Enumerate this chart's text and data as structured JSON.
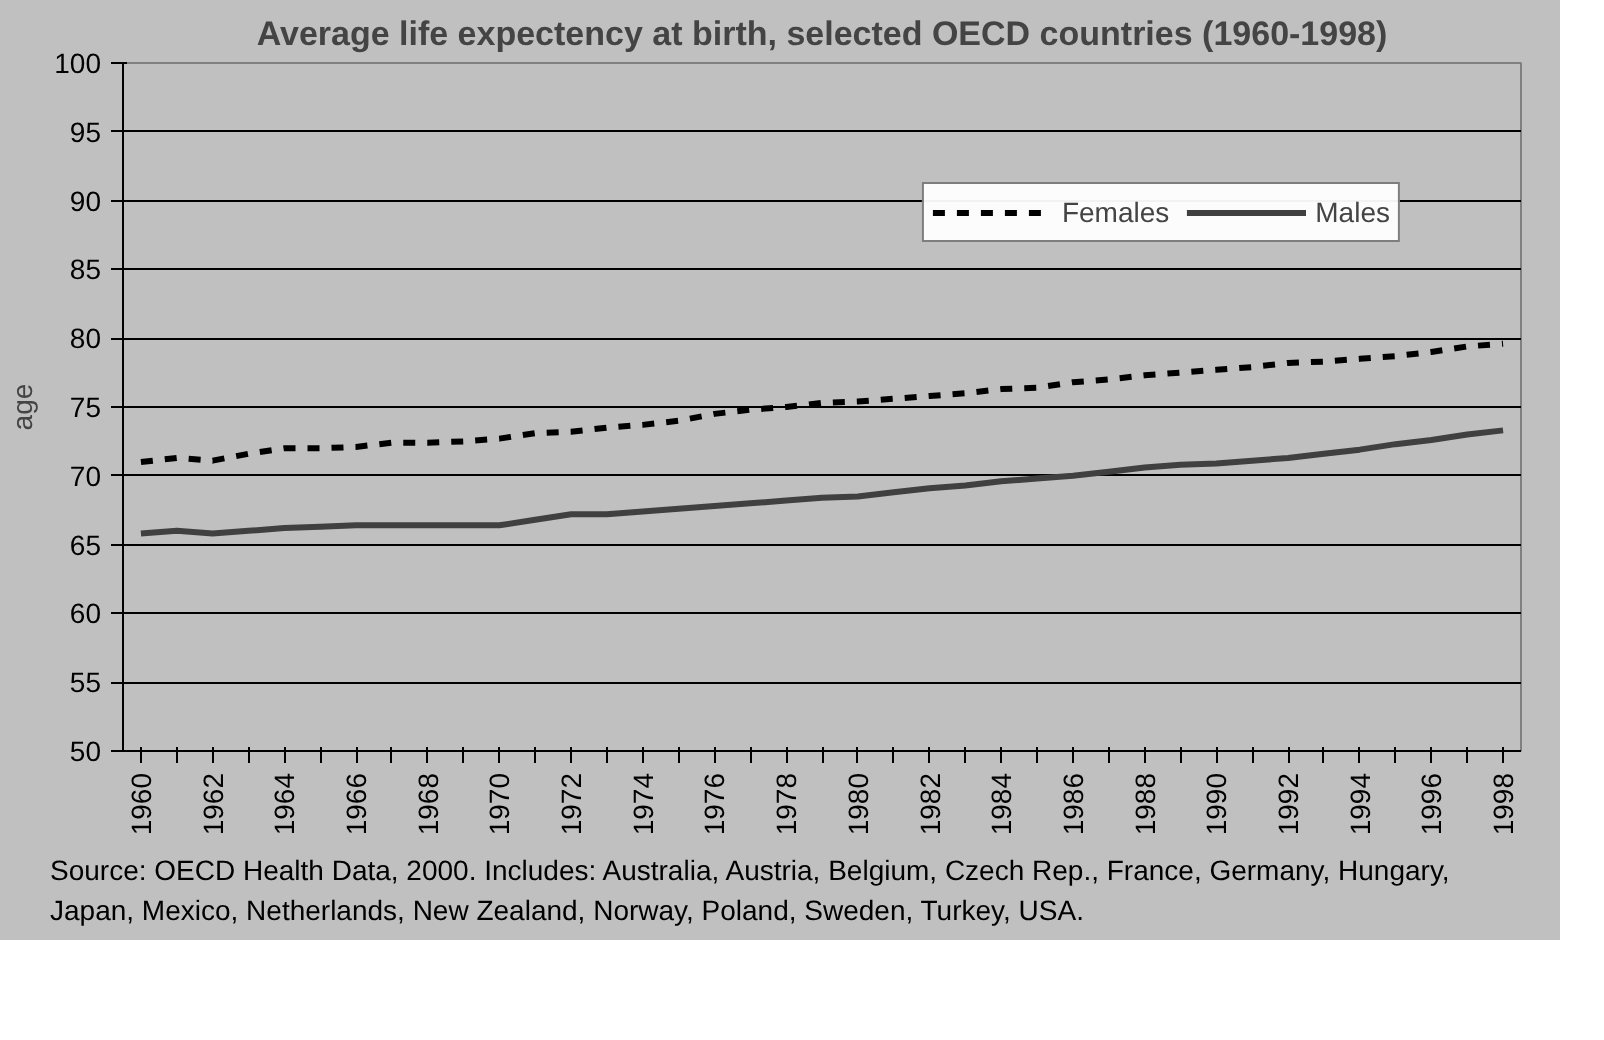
{
  "chart_data": {
    "type": "line",
    "title": "Average life expectency at birth, selected OECD countries (1960-1998)",
    "ylabel": "age",
    "categories": [
      "1960",
      null,
      "1962",
      null,
      "1964",
      null,
      "1966",
      null,
      "1968",
      null,
      "1970",
      null,
      "1972",
      null,
      "1974",
      null,
      "1976",
      null,
      "1978",
      null,
      "1980",
      null,
      "1982",
      null,
      "1984",
      null,
      "1986",
      null,
      "1988",
      null,
      "1990",
      null,
      "1992",
      null,
      "1994",
      null,
      "1996",
      null,
      "1998"
    ],
    "series": [
      {
        "name": "Females",
        "color": "#000000",
        "line_style": "dashed",
        "values": [
          71.0,
          71.3,
          71.1,
          71.6,
          72.0,
          72.0,
          72.1,
          72.4,
          72.4,
          72.5,
          72.7,
          73.1,
          73.2,
          73.5,
          73.7,
          74.0,
          74.5,
          74.8,
          75.0,
          75.3,
          75.4,
          75.6,
          75.8,
          76.0,
          76.3,
          76.4,
          76.8,
          77.0,
          77.3,
          77.5,
          77.7,
          77.9,
          78.2,
          78.3,
          78.5,
          78.7,
          79.0,
          79.4,
          79.6
        ]
      },
      {
        "name": "Males",
        "color": "#404040",
        "line_style": "solid",
        "values": [
          65.8,
          66.0,
          65.8,
          66.0,
          66.2,
          66.3,
          66.4,
          66.4,
          66.4,
          66.4,
          66.4,
          66.8,
          67.2,
          67.2,
          67.4,
          67.6,
          67.8,
          68.0,
          68.2,
          68.4,
          68.5,
          68.8,
          69.1,
          69.3,
          69.6,
          69.8,
          70.0,
          70.3,
          70.6,
          70.8,
          70.9,
          71.1,
          71.3,
          71.6,
          71.9,
          72.3,
          72.6,
          73.0,
          73.3
        ]
      }
    ],
    "ylim": [
      50,
      100
    ],
    "yticks": [
      50,
      55,
      60,
      65,
      70,
      75,
      80,
      85,
      90,
      95,
      100
    ],
    "grid": "y",
    "legend": "top right",
    "annotations": [
      "Source: OECD Health Data, 2000. Includes: Australia, Austria, Belgium, Czech Rep., France, Germany, Hungary, Japan, Mexico, Netherlands, New Zealand, Norway, Poland, Sweden, Turkey, USA."
    ]
  }
}
